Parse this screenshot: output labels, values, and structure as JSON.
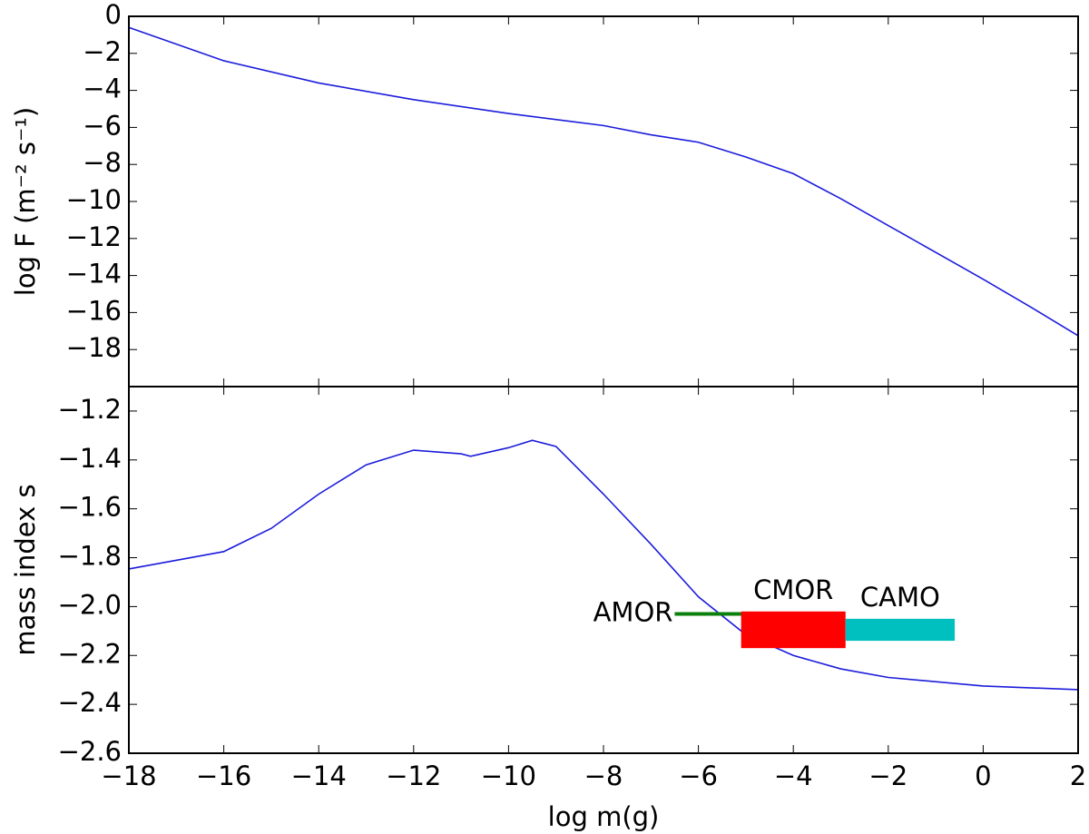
{
  "chart_data": [
    {
      "type": "line",
      "ylabel": "log F (m⁻² s⁻¹)",
      "xlim": [
        -18,
        2
      ],
      "ylim": [
        -20,
        0
      ],
      "yticks": [
        {
          "value": 0,
          "label": "0"
        },
        {
          "value": -2,
          "label": "−2"
        },
        {
          "value": -4,
          "label": "−4"
        },
        {
          "value": -6,
          "label": "−6"
        },
        {
          "value": -8,
          "label": "−8"
        },
        {
          "value": -10,
          "label": "−10"
        },
        {
          "value": -12,
          "label": "−12"
        },
        {
          "value": -14,
          "label": "−14"
        },
        {
          "value": -16,
          "label": "−16"
        },
        {
          "value": -18,
          "label": "−18"
        }
      ],
      "x": [
        -18,
        -16,
        -14,
        -12,
        -10,
        -8,
        -7,
        -6,
        -5,
        -4,
        -3,
        -2,
        0,
        1,
        2
      ],
      "series": [
        {
          "color": "#1c1cdc",
          "values": [
            -0.6,
            -2.4,
            -3.6,
            -4.5,
            -5.25,
            -5.9,
            -6.4,
            -6.8,
            -7.6,
            -8.5,
            -9.85,
            -11.3,
            -14.2,
            -15.7,
            -17.25
          ]
        }
      ]
    },
    {
      "type": "line",
      "ylabel": "mass index s",
      "xlabel": "log m(g)",
      "xlim": [
        -18,
        2
      ],
      "xticks": [
        {
          "value": -18,
          "label": "−18"
        },
        {
          "value": -16,
          "label": "−16"
        },
        {
          "value": -14,
          "label": "−14"
        },
        {
          "value": -12,
          "label": "−12"
        },
        {
          "value": -10,
          "label": "−10"
        },
        {
          "value": -8,
          "label": "−8"
        },
        {
          "value": -6,
          "label": "−6"
        },
        {
          "value": -4,
          "label": "−4"
        },
        {
          "value": -2,
          "label": "−2"
        },
        0,
        2
      ],
      "ylim": [
        -2.6,
        -1.1
      ],
      "yticks": [
        {
          "value": -1.2,
          "label": "−1.2"
        },
        {
          "value": -1.4,
          "label": "−1.4"
        },
        {
          "value": -1.6,
          "label": "−1.6"
        },
        {
          "value": -1.8,
          "label": "−1.8"
        },
        {
          "value": -2.0,
          "label": "−2.0"
        },
        {
          "value": -2.2,
          "label": "−2.2"
        },
        {
          "value": -2.4,
          "label": "−2.4"
        },
        {
          "value": -2.6,
          "label": "−2.6"
        }
      ],
      "x": [
        -18,
        -16,
        -15,
        -14,
        -13,
        -12,
        -11,
        -10.8,
        -10,
        -9.5,
        -9,
        -8,
        -7,
        -6,
        -5,
        -4,
        -3,
        -2,
        0,
        2
      ],
      "series": [
        {
          "color": "#1c1cdc",
          "values": [
            -1.846,
            -1.775,
            -1.68,
            -1.54,
            -1.42,
            -1.36,
            -1.375,
            -1.385,
            -1.35,
            -1.32,
            -1.345,
            -1.54,
            -1.745,
            -1.96,
            -2.115,
            -2.2,
            -2.255,
            -2.29,
            -2.325,
            -2.34
          ]
        }
      ],
      "ranges": [
        {
          "name": "AMOR",
          "color": "#0a800a",
          "x": [
            -6.5,
            -4.4
          ],
          "y": [
            -2.03,
            -2.03
          ]
        },
        {
          "name": "CMOR",
          "color": "#ff0000",
          "x": [
            -5.1,
            -2.9
          ],
          "y": [
            -2.02,
            -2.17
          ]
        },
        {
          "name": "CAMO",
          "color": "#00bfbf",
          "x": [
            -2.9,
            -0.6
          ],
          "y": [
            -2.05,
            -2.14
          ]
        }
      ]
    }
  ]
}
